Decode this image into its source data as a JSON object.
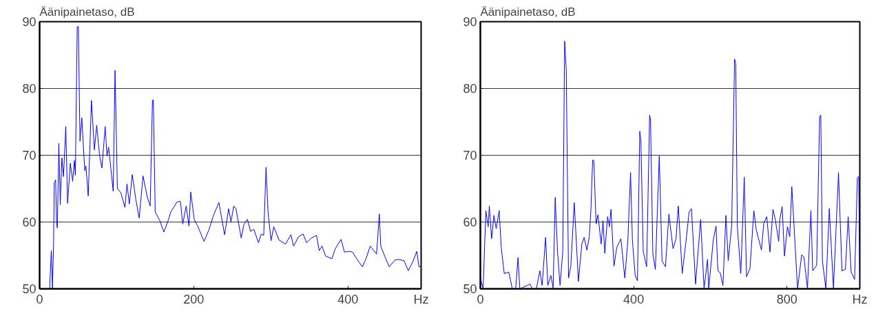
{
  "chart_data": [
    {
      "type": "line",
      "ylabel": "Äänipainetaso, dB",
      "xlabel": "Hz",
      "xlim": [
        0,
        495
      ],
      "ylim": [
        50,
        90
      ],
      "xticks": [
        0,
        200,
        400
      ],
      "yticks": [
        50,
        60,
        70,
        80,
        90
      ],
      "grid": "y",
      "series": [
        {
          "color": "#0000ff",
          "x": [
            13,
            15.2,
            16.7,
            18.2,
            19,
            20.8,
            22,
            23,
            25,
            26.8,
            28.9,
            31,
            34,
            36.3,
            39.9,
            42.9,
            45.2,
            46.4,
            48.8,
            50.3,
            52.4,
            54.8,
            58.6,
            60.1,
            63.1,
            67.3,
            71.1,
            74.1,
            77.9,
            80.9,
            85.1,
            87.5,
            89.6,
            95.5,
            97.9,
            100.9,
            105.4,
            110.7,
            113.4,
            116.4,
            120.2,
            124.7,
            129.2,
            134.2,
            139.6,
            143.5,
            146.4,
            147.6,
            150,
            156,
            161.3,
            167.3,
            170.2,
            178.3,
            182.7,
            185.7,
            190.2,
            193.8,
            196.1,
            200.6,
            205.1,
            213.4,
            219.9,
            225.9,
            232.7,
            240,
            245.3,
            248.3,
            251.9,
            254.8,
            261.6,
            265.2,
            269.7,
            273.6,
            278,
            284,
            287.5,
            290.8,
            293.8,
            296.4,
            300.3,
            303.8,
            310.7,
            319,
            326.1,
            329.5,
            336,
            342,
            346.4,
            352.4,
            359.2,
            362.8,
            366.4,
            371.1,
            379.2,
            383.6,
            391.1,
            395.5,
            402.1,
            406,
            411.9,
            418.8,
            423.8,
            428.9,
            437.2,
            440.8,
            442.6,
            449.1,
            453.6,
            461,
            465.5,
            472.9,
            478.3,
            484.8,
            489.3,
            492.3,
            495
          ],
          "values": [
            50,
            55.7,
            50,
            57.1,
            65.9,
            66.3,
            60,
            59.1,
            71.8,
            62.6,
            69.6,
            66.8,
            74.3,
            62.8,
            68.8,
            66.1,
            69.2,
            67,
            89.2,
            89.3,
            72.1,
            75.6,
            67.7,
            68.4,
            63.9,
            78.2,
            70.8,
            74.5,
            69.9,
            68.1,
            74.3,
            69.9,
            71.2,
            64.6,
            82.7,
            65,
            64.4,
            62.2,
            65.7,
            62.7,
            67.1,
            63.5,
            60.6,
            66.9,
            63.8,
            62.4,
            78.2,
            78.3,
            61.5,
            60.2,
            58.5,
            60.4,
            61.5,
            63,
            63.1,
            59.7,
            62.4,
            59.4,
            64.5,
            60.4,
            59.4,
            57.1,
            58.9,
            61.1,
            62.9,
            58.1,
            62,
            60,
            62.4,
            62,
            57.6,
            59.7,
            60.4,
            58.6,
            58.9,
            56.9,
            58.2,
            58,
            68.2,
            61.5,
            57.2,
            59.3,
            57.3,
            56.7,
            58.1,
            56.4,
            57.8,
            58.2,
            56.9,
            57.6,
            58,
            55.7,
            56.4,
            54.9,
            54.5,
            56,
            57.4,
            55.5,
            55.6,
            55.5,
            54.4,
            53.3,
            54.6,
            56.4,
            55.2,
            61.2,
            56.4,
            54.5,
            53.3,
            54.3,
            54.4,
            54.2,
            52.7,
            54.2,
            55.6,
            53.3,
            53.3
          ]
        }
      ]
    },
    {
      "type": "line",
      "ylabel": "Äänipainetaso, dB",
      "xlabel": "Hz",
      "xlim": [
        0,
        990
      ],
      "ylim": [
        50,
        90
      ],
      "xticks": [
        0,
        400,
        800
      ],
      "yticks": [
        50,
        60,
        70,
        80,
        90
      ],
      "grid": "y",
      "series": [
        {
          "color": "#0000ff",
          "x": [
            0,
            7.2,
            14.4,
            20.4,
            23.4,
            29.4,
            35.4,
            41.3,
            49.1,
            54.5,
            62.3,
            74.3,
            83.3,
            92.3,
            98.3,
            103,
            129.4,
            135.4,
            146.2,
            155.2,
            161.2,
            170.2,
            176.1,
            183.9,
            189.9,
            195.3,
            201.3,
            207.9,
            215.1,
            219.9,
            224.1,
            230.1,
            236.1,
            245,
            252.8,
            255.8,
            264.8,
            270.8,
            278,
            284,
            288.2,
            293,
            296,
            302,
            306.8,
            315.2,
            320,
            324.7,
            331.9,
            336.7,
            340.9,
            348.7,
            355.9,
            366.7,
            376.9,
            384.7,
            391.9,
            396.7,
            403.9,
            409.9,
            415.9,
            418.9,
            424.9,
            433.9,
            441.6,
            444,
            450,
            456.6,
            466.8,
            474,
            483,
            491.9,
            502.7,
            510.5,
            516.5,
            526.7,
            535.7,
            544.7,
            550.7,
            561.5,
            574.7,
            583.7,
            592.7,
            595.7,
            607.7,
            614.9,
            619.7,
            625.7,
            632.9,
            640.7,
            646.7,
            655.7,
            663.3,
            666.3,
            670.5,
            679.5,
            688.5,
            694.5,
            703.5,
            713.6,
            719.6,
            733.4,
            739.4,
            747.2,
            755.6,
            763.4,
            769.4,
            778.4,
            781.4,
            787.4,
            793.4,
            801.2,
            807.2,
            812.6,
            827.6,
            838.4,
            844.4,
            853.4,
            862.4,
            867.2,
            877.4,
            885.2,
            888.2,
            892.4,
            901.4,
            910.4,
            921.2,
            934.4,
            943.4,
            952.4,
            959.6,
            967.4,
            976.4,
            983.6,
            987.2,
            990
          ],
          "values": [
            51.6,
            50,
            61.7,
            59.3,
            62.4,
            57.5,
            61,
            59,
            61.7,
            56.2,
            52.3,
            52.5,
            50,
            50,
            54.7,
            50,
            50.7,
            50,
            50,
            52.7,
            50.5,
            57.7,
            50.5,
            52,
            50.1,
            63.7,
            55.6,
            50.5,
            55.6,
            87.1,
            82.9,
            51.6,
            53.4,
            62.9,
            54.5,
            51.1,
            56.7,
            57.7,
            55.8,
            57.7,
            61.5,
            69.3,
            69.2,
            59.7,
            61.1,
            56.7,
            60.2,
            55.3,
            60.8,
            59.3,
            61.9,
            53.4,
            56.2,
            57.5,
            51.6,
            57.1,
            67.4,
            57.3,
            52,
            51.2,
            73.6,
            72.1,
            55.6,
            53.3,
            76,
            75.4,
            55.3,
            52.9,
            69.9,
            54.2,
            53.3,
            61.2,
            56,
            57.5,
            62.4,
            52.3,
            56.7,
            61.5,
            62,
            50.7,
            60.4,
            50,
            54.4,
            50,
            57.3,
            59.4,
            52.7,
            52.4,
            50.5,
            61,
            54.2,
            59.4,
            84.4,
            83.7,
            59.3,
            52.3,
            66.7,
            51.8,
            53.1,
            61.7,
            58.9,
            55.8,
            59.8,
            60.8,
            55.5,
            61.9,
            60.4,
            57.1,
            60.4,
            62.3,
            54.9,
            59.3,
            57.8,
            65.3,
            50,
            55.1,
            54.7,
            50,
            61.7,
            52.7,
            53.5,
            75.8,
            76,
            54.2,
            50,
            62,
            50,
            67.4,
            52.7,
            52.9,
            60.8,
            52.5,
            51.4,
            66.6,
            66.8,
            50
          ]
        }
      ]
    }
  ]
}
